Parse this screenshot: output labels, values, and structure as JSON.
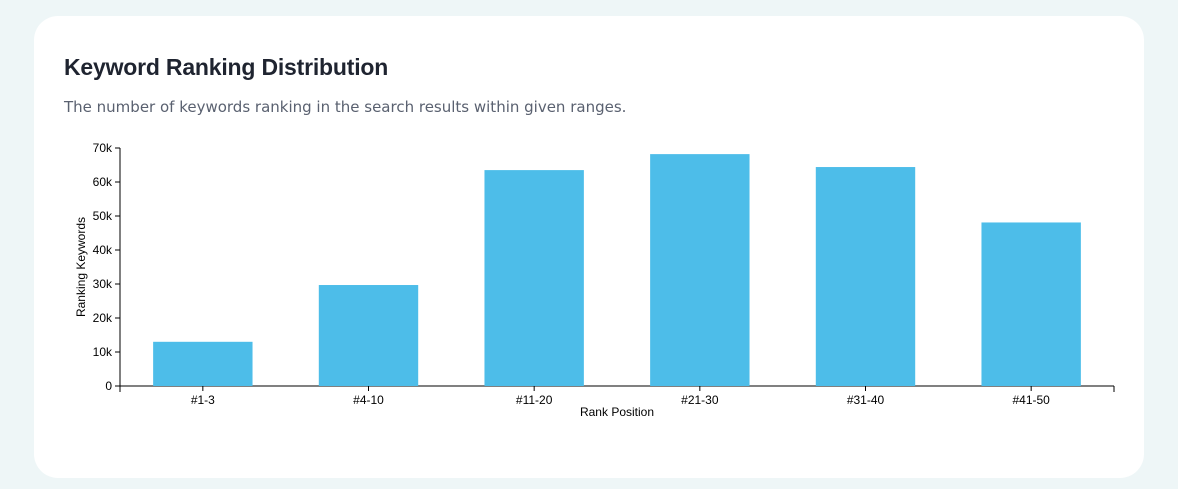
{
  "card": {
    "title": "Keyword Ranking Distribution",
    "subtitle": "The number of keywords ranking in the search results within given ranges."
  },
  "colors": {
    "bar": "#4dbde9",
    "background": "#eef6f7",
    "card": "#ffffff"
  },
  "chart_data": {
    "type": "bar",
    "title": "",
    "xlabel": "Rank Position",
    "ylabel": "Ranking Keywords",
    "categories": [
      "#1-3",
      "#4-10",
      "#11-20",
      "#21-30",
      "#31-40",
      "#41-50"
    ],
    "values": [
      13000,
      29700,
      63500,
      68200,
      64400,
      48100
    ],
    "ylim": [
      0,
      70000
    ],
    "yticks": [
      0,
      10000,
      20000,
      30000,
      40000,
      50000,
      60000,
      70000
    ],
    "ytick_labels": [
      "0",
      "10k",
      "20k",
      "30k",
      "40k",
      "50k",
      "60k",
      "70k"
    ],
    "grid": false,
    "legend": "none"
  }
}
